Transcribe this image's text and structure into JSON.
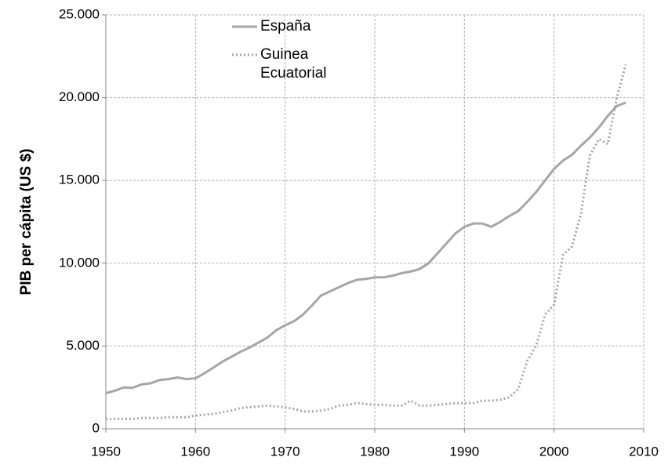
{
  "chart_data": {
    "type": "line",
    "ylabel": "PIB per cápita (US $)",
    "x": [
      1950,
      1951,
      1952,
      1953,
      1954,
      1955,
      1956,
      1957,
      1958,
      1959,
      1960,
      1961,
      1962,
      1963,
      1964,
      1965,
      1966,
      1967,
      1968,
      1969,
      1970,
      1971,
      1972,
      1973,
      1974,
      1975,
      1976,
      1977,
      1978,
      1979,
      1980,
      1981,
      1982,
      1983,
      1984,
      1985,
      1986,
      1987,
      1988,
      1989,
      1990,
      1991,
      1992,
      1993,
      1994,
      1995,
      1996,
      1997,
      1998,
      1999,
      2000,
      2001,
      2002,
      2003,
      2004,
      2005,
      2006,
      2007,
      2008
    ],
    "series": [
      {
        "name": "España",
        "color": "#a6a6a6",
        "dash": "solid",
        "values": [
          2150,
          2300,
          2500,
          2480,
          2680,
          2750,
          2950,
          3000,
          3100,
          3000,
          3050,
          3350,
          3700,
          4050,
          4350,
          4650,
          4900,
          5200,
          5500,
          5950,
          6250,
          6500,
          6900,
          7450,
          8050,
          8300,
          8550,
          8800,
          9000,
          9050,
          9150,
          9150,
          9250,
          9400,
          9500,
          9650,
          10000,
          10600,
          11200,
          11800,
          12200,
          12400,
          12400,
          12200,
          12500,
          12850,
          13150,
          13700,
          14300,
          15000,
          15700,
          16200,
          16550,
          17100,
          17600,
          18200,
          18900,
          19500,
          19700
        ]
      },
      {
        "name": "Guinea Ecuatorial",
        "color": "#a6a6a6",
        "dash": "dotted",
        "values": [
          600,
          600,
          600,
          600,
          650,
          650,
          650,
          700,
          700,
          700,
          800,
          850,
          900,
          1000,
          1100,
          1250,
          1300,
          1350,
          1400,
          1350,
          1300,
          1200,
          1050,
          1050,
          1100,
          1200,
          1400,
          1450,
          1550,
          1500,
          1450,
          1450,
          1400,
          1400,
          1700,
          1400,
          1400,
          1450,
          1500,
          1550,
          1550,
          1550,
          1700,
          1700,
          1750,
          1900,
          2400,
          4100,
          5000,
          6900,
          7500,
          10500,
          11000,
          13000,
          16500,
          17500,
          17200,
          20000,
          22000
        ]
      }
    ],
    "xlim": [
      1950,
      2010
    ],
    "xticks": [
      1950,
      1960,
      1970,
      1980,
      1990,
      2000,
      2010
    ],
    "ylim": [
      0,
      25000
    ],
    "yticks": [
      0,
      {
        "value": 5000,
        "label": "5.000"
      },
      {
        "value": 10000,
        "label": "10.000"
      },
      {
        "value": 15000,
        "label": "15.000"
      },
      {
        "value": 20000,
        "label": "20.000"
      },
      {
        "value": 25000,
        "label": "25.000"
      }
    ],
    "grid": true
  }
}
